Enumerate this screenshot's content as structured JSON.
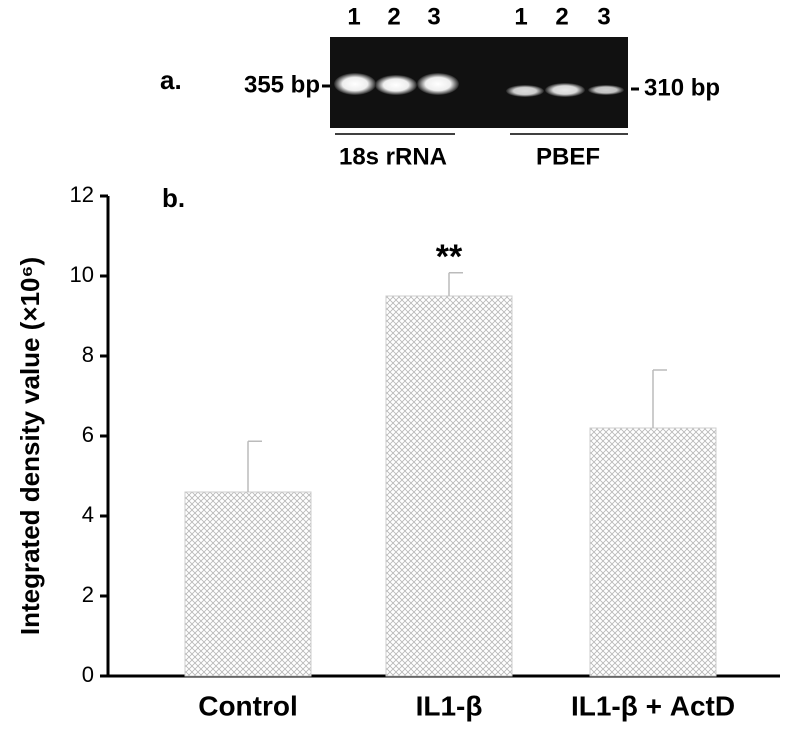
{
  "chart_data": {
    "type": "bar",
    "panel_labels": [
      "a.",
      "b."
    ],
    "gel": {
      "lanes": [
        "1",
        "2",
        "3",
        "1",
        "2",
        "3"
      ],
      "markers": [
        "355 bp",
        "310 bp"
      ],
      "groups": [
        "18s rRNA",
        "PBEF"
      ]
    },
    "y_label": "Integrated density value (×10⁶)",
    "categories": [
      "Control",
      "IL1-β",
      "IL1-β + ActD"
    ],
    "values": [
      4.6,
      9.5,
      6.2
    ],
    "errors": [
      1.27,
      0.58,
      1.45
    ],
    "annotations": [
      "**"
    ],
    "color": "#b8b8b8",
    "ylim": [
      0,
      12
    ],
    "yticks": [
      0,
      2,
      4,
      6,
      8,
      10,
      12
    ]
  }
}
